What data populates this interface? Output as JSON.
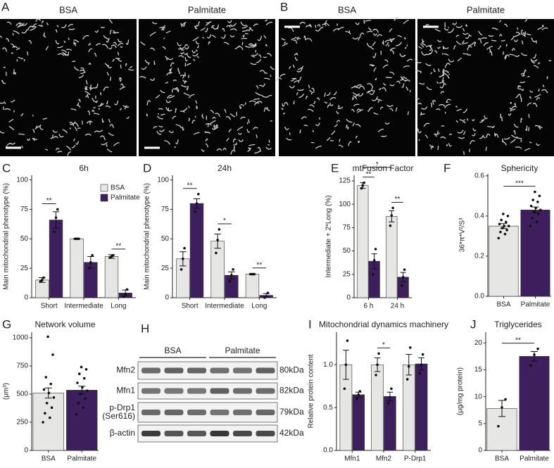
{
  "images": [
    {
      "panel": "A",
      "labels": [
        "BSA",
        "Palmitate"
      ]
    },
    {
      "panel": "B",
      "labels": [
        "BSA",
        "Palmitate"
      ]
    }
  ],
  "blot": {
    "panel": "H",
    "groups": [
      "BSA",
      "Palmitate"
    ],
    "rows": [
      {
        "name": [
          "Mfn2"
        ],
        "size": "80kDa"
      },
      {
        "name": [
          "Mfn1"
        ],
        "size": "82kDa"
      },
      {
        "name": [
          "p-Drp1",
          "(Ser616)"
        ],
        "size": "79kDa"
      },
      {
        "name": [
          "β-actin"
        ],
        "size": "42kDa"
      }
    ]
  },
  "chart_data": [
    {
      "type": "bar",
      "panel": "C",
      "title": "6h",
      "y_label": "Main mitochondrial phenotype (%)",
      "categories": [
        "Short",
        "Intermediate",
        "Long"
      ],
      "series": [
        {
          "name": "BSA",
          "color": "#e6e6e4",
          "values": [
            15,
            50,
            35
          ],
          "errors": [
            2,
            0.5,
            1.5
          ],
          "points": [
            [
              14,
              15,
              17
            ],
            [
              50,
              50,
              50
            ],
            [
              34,
              35,
              36
            ]
          ]
        },
        {
          "name": "Palmitate",
          "color": "#3c1f5c",
          "values": [
            66,
            30,
            4
          ],
          "errors": [
            7,
            5,
            2.5
          ],
          "points": [
            [
              56,
              68,
              75
            ],
            [
              25,
              30,
              36
            ],
            [
              1,
              3,
              7
            ]
          ]
        }
      ],
      "ylim": [
        0,
        104
      ],
      "yticks": [
        0,
        25,
        50,
        75,
        100
      ],
      "legend": "top-right",
      "annotations": [
        {
          "text": "**"
        },
        {
          "text": "**"
        }
      ]
    },
    {
      "type": "bar",
      "panel": "D",
      "title": "24h",
      "y_label": "Main mitochondrial phenotype (%)",
      "categories": [
        "Short",
        "Intermediate",
        "Long"
      ],
      "series": [
        {
          "name": "BSA",
          "color": "#e6e6e4",
          "values": [
            33,
            48,
            20
          ],
          "errors": [
            6,
            6,
            0.5
          ],
          "points": [
            [
              24,
              33,
              42
            ],
            [
              38,
              49,
              58
            ],
            [
              20,
              20,
              20
            ]
          ]
        },
        {
          "name": "Palmitate",
          "color": "#3c1f5c",
          "values": [
            80,
            19,
            2
          ],
          "errors": [
            4,
            3,
            1.5
          ],
          "points": [
            [
              73,
              80,
              88
            ],
            [
              14,
              19,
              24
            ],
            [
              0,
              1,
              4
            ]
          ]
        }
      ],
      "ylim": [
        0,
        104
      ],
      "yticks": [
        0,
        25,
        50,
        75,
        100
      ],
      "annotations": [
        {
          "text": "**"
        },
        {
          "text": "*"
        },
        {
          "text": "**"
        }
      ]
    },
    {
      "type": "bar",
      "panel": "E",
      "title": "mtFusion Factor",
      "y_label": "Intermediate + 2*Long (%)",
      "categories": [
        "6 h",
        "24 h"
      ],
      "series": [
        {
          "name": "BSA",
          "color": "#e6e6e4",
          "values": [
            120,
            87
          ],
          "errors": [
            3,
            6
          ],
          "points": [
            [
              117,
              120,
              123
            ],
            [
              77,
              88,
              96
            ]
          ]
        },
        {
          "name": "Palmitate",
          "color": "#3c1f5c",
          "values": [
            39,
            22
          ],
          "errors": [
            8,
            5
          ],
          "points": [
            [
              25,
              40,
              52
            ],
            [
              13,
              22,
              30
            ]
          ]
        }
      ],
      "ylim": [
        0,
        131
      ],
      "yticks": [
        0,
        25,
        50,
        75,
        100,
        125
      ],
      "annotations": [
        {
          "text": "*"
        },
        {
          "text": "**"
        },
        {
          "text": "**"
        }
      ]
    },
    {
      "type": "bar",
      "panel": "F",
      "title": "Sphericity",
      "y_label": "36*π*V²/S³",
      "categories": [
        "BSA",
        "Palmitate"
      ],
      "colors": [
        "#e6e6e4",
        "#3c1f5c"
      ],
      "values": [
        0.35,
        0.43
      ],
      "errors": [
        0.012,
        0.015
      ],
      "points": [
        [
          0.29,
          0.31,
          0.32,
          0.33,
          0.34,
          0.35,
          0.35,
          0.36,
          0.37,
          0.38,
          0.4,
          0.41
        ],
        [
          0.35,
          0.37,
          0.39,
          0.41,
          0.42,
          0.43,
          0.44,
          0.45,
          0.47,
          0.48,
          0.5,
          0.52
        ]
      ],
      "ylim": [
        0,
        0.61
      ],
      "yticks": [
        {
          "value": 0,
          "label": "0.0"
        },
        0.2,
        0.4,
        0.6
      ],
      "annotations": [
        {
          "text": "***"
        }
      ]
    },
    {
      "type": "bar",
      "panel": "G",
      "title": "Network volume",
      "y_label": "(μm³)",
      "categories": [
        "BSA",
        "Palmitate"
      ],
      "colors": [
        "#e6e6e4",
        "#3c1f5c"
      ],
      "values": [
        510,
        535
      ],
      "errors": [
        45,
        35
      ],
      "points": [
        [
          250,
          290,
          330,
          380,
          420,
          470,
          510,
          540,
          590,
          650,
          850,
          1010
        ],
        [
          320,
          380,
          420,
          460,
          500,
          530,
          560,
          600,
          640,
          680,
          720,
          740
        ]
      ],
      "ylim": [
        0,
        1050
      ],
      "yticks": [
        0,
        250,
        500,
        750,
        1000
      ],
      "annotations": []
    },
    {
      "type": "bar",
      "panel": "I",
      "title": "Mitochondrial dynamics machinery",
      "y_label": "Relative protein content",
      "categories": [
        "Mfn1",
        "Mfn2",
        "P-Drp1"
      ],
      "series": [
        {
          "name": "BSA",
          "color": "#e6e6e4",
          "values": [
            1.0,
            1.0,
            1.0
          ],
          "errors": [
            0.17,
            0.08,
            0.12
          ],
          "points": [
            [
              0.72,
              1.0,
              1.28
            ],
            [
              0.88,
              1.0,
              1.13
            ],
            [
              0.83,
              0.98,
              1.2
            ]
          ]
        },
        {
          "name": "Palmitate",
          "color": "#3c1f5c",
          "values": [
            0.65,
            0.63,
            1.01
          ],
          "errors": [
            0.03,
            0.05,
            0.07
          ],
          "points": [
            [
              0.6,
              0.65,
              0.69
            ],
            [
              0.55,
              0.62,
              0.72
            ],
            [
              0.9,
              1.0,
              1.12
            ]
          ]
        }
      ],
      "ylim": [
        0,
        1.38
      ],
      "yticks": [
        {
          "value": 0,
          "label": "0.0"
        },
        0.5,
        {
          "value": 1,
          "label": "1.0"
        }
      ],
      "annotations": [
        {
          "text": "*"
        }
      ]
    },
    {
      "type": "bar",
      "panel": "J",
      "title": "Triglycerides",
      "y_label": "(μg/mg protein)",
      "categories": [
        "BSA",
        "Palmitate"
      ],
      "colors": [
        "#e6e6e4",
        "#3c1f5c"
      ],
      "values": [
        7.8,
        17.5
      ],
      "errors": [
        1.5,
        0.9
      ],
      "points": [
        [
          4.5,
          8,
          9.5
        ],
        [
          15.8,
          17.8,
          18.9
        ]
      ],
      "ylim": [
        0,
        22
      ],
      "yticks": [
        0,
        5,
        10,
        15,
        20
      ],
      "annotations": [
        {
          "text": "**"
        }
      ]
    }
  ]
}
